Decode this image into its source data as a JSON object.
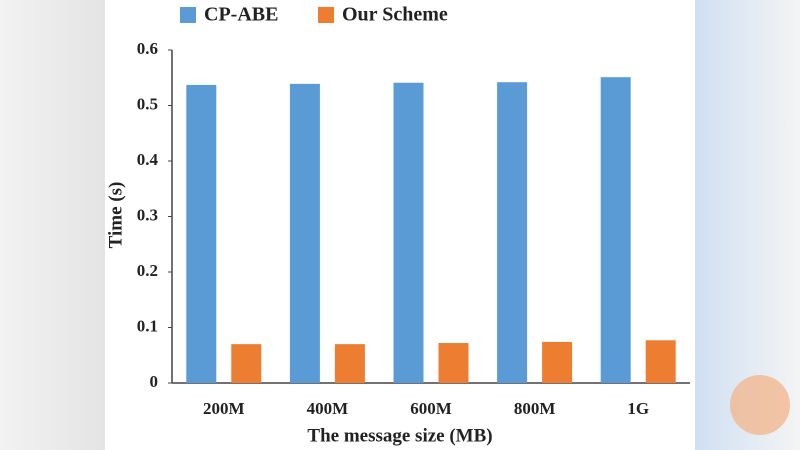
{
  "chart_data": {
    "type": "bar",
    "categories": [
      "200M",
      "400M",
      "600M",
      "800M",
      "1G"
    ],
    "series": [
      {
        "name": "CP-ABE",
        "color": "#5b9bd5",
        "values": [
          0.537,
          0.539,
          0.541,
          0.542,
          0.551
        ]
      },
      {
        "name": "Our Scheme",
        "color": "#ed7d31",
        "values": [
          0.07,
          0.07,
          0.072,
          0.074,
          0.077
        ]
      }
    ],
    "ylim": [
      0,
      0.6
    ],
    "yticks": [
      0,
      0.1,
      0.2,
      0.3,
      0.4,
      0.5,
      0.6
    ],
    "xlabel": "The message size (MB)",
    "ylabel": "Time (s)",
    "grid": false
  }
}
